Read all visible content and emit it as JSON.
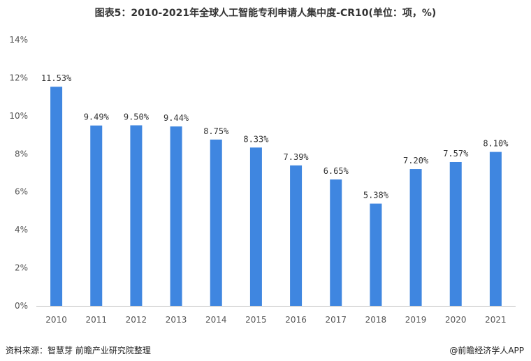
{
  "title": "图表5：2010-2021年全球人工智能专利申请人集中度-CR10(单位：项，%)",
  "source_text": "资料来源：智慧芽 前瞻产业研究院整理",
  "brand_text": "@前瞻经济学人APP",
  "colors": {
    "bar": "#3f86e0"
  },
  "chart_data": {
    "type": "bar",
    "title": "图表5：2010-2021年全球人工智能专利申请人集中度-CR10(单位：项，%)",
    "xlabel": "",
    "ylabel": "",
    "categories": [
      "2010",
      "2011",
      "2012",
      "2013",
      "2014",
      "2015",
      "2016",
      "2017",
      "2018",
      "2019",
      "2020",
      "2021"
    ],
    "values": [
      11.53,
      9.49,
      9.5,
      9.44,
      8.75,
      8.33,
      7.39,
      6.65,
      5.38,
      7.2,
      7.57,
      8.1
    ],
    "data_labels": [
      "11.53%",
      "9.49%",
      "9.50%",
      "9.44%",
      "8.75%",
      "8.33%",
      "7.39%",
      "6.65%",
      "5.38%",
      "7.20%",
      "7.57%",
      "8.10%"
    ],
    "ylim": [
      0,
      14
    ],
    "yticks": [
      "0%",
      "2%",
      "4%",
      "6%",
      "8%",
      "10%",
      "12%",
      "14%"
    ],
    "grid": false,
    "legend": "none"
  }
}
